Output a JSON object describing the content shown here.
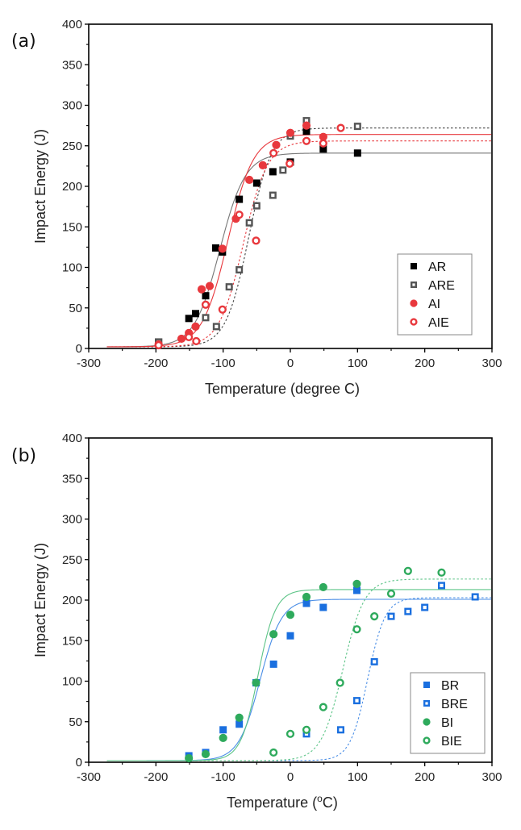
{
  "chart_data": [
    {
      "type": "scatter",
      "panel_label": "(a)",
      "title": "",
      "xlabel": "Temperature (degree C)",
      "ylabel": "Impact Energy (J)",
      "xlim": [
        -300,
        300
      ],
      "ylim": [
        0,
        400
      ],
      "xticks": [
        -300,
        -200,
        -100,
        0,
        100,
        200,
        300
      ],
      "yticks": [
        0,
        50,
        100,
        150,
        200,
        250,
        300,
        350,
        400
      ],
      "grid": false,
      "legend_position": "bottom-right",
      "series": [
        {
          "name": "AR",
          "marker": "square",
          "filled": true,
          "color": "#000000",
          "fit": {
            "style": "solid",
            "color": "#777777",
            "lower": 2,
            "upper": 241,
            "T0": -105,
            "C": 38
          },
          "points": [
            [
              -196,
              8
            ],
            [
              -151,
              37
            ],
            [
              -141,
              43
            ],
            [
              -126,
              65
            ],
            [
              -111,
              124
            ],
            [
              -101,
              119
            ],
            [
              -76,
              184
            ],
            [
              -50,
              204
            ],
            [
              -26,
              218
            ],
            [
              0,
              230
            ],
            [
              24,
              268
            ],
            [
              49,
              246
            ],
            [
              100,
              241
            ]
          ]
        },
        {
          "name": "ARE",
          "marker": "square",
          "filled": false,
          "color": "#555555",
          "fit": {
            "style": "dashed",
            "color": "#444444",
            "lower": 2,
            "upper": 272,
            "T0": -62,
            "C": 34
          },
          "points": [
            [
              -196,
              8
            ],
            [
              -126,
              38
            ],
            [
              -110,
              27
            ],
            [
              -91,
              76
            ],
            [
              -76,
              97
            ],
            [
              -61,
              155
            ],
            [
              -50,
              176
            ],
            [
              -26,
              189
            ],
            [
              -11,
              220
            ],
            [
              0,
              262
            ],
            [
              24,
              281
            ],
            [
              100,
              274
            ]
          ]
        },
        {
          "name": "AI",
          "marker": "circle",
          "filled": true,
          "color": "#e8383d",
          "fit": {
            "style": "solid",
            "color": "#e8383d",
            "lower": 2,
            "upper": 264,
            "T0": -93,
            "C": 38
          },
          "points": [
            [
              -196,
              5
            ],
            [
              -162,
              12
            ],
            [
              -151,
              19
            ],
            [
              -141,
              27
            ],
            [
              -132,
              73
            ],
            [
              -120,
              77
            ],
            [
              -101,
              123
            ],
            [
              -81,
              160
            ],
            [
              -61,
              208
            ],
            [
              -41,
              226
            ],
            [
              -21,
              251
            ],
            [
              0,
              266
            ],
            [
              24,
              275
            ],
            [
              49,
              261
            ]
          ]
        },
        {
          "name": "AIE",
          "marker": "circle",
          "filled": false,
          "color": "#e8383d",
          "fit": {
            "style": "dashed",
            "color": "#e8383d",
            "lower": 2,
            "upper": 256,
            "T0": -70,
            "C": 36
          },
          "points": [
            [
              -196,
              4
            ],
            [
              -151,
              14
            ],
            [
              -140,
              9
            ],
            [
              -126,
              54
            ],
            [
              -101,
              48
            ],
            [
              -76,
              165
            ],
            [
              -51,
              133
            ],
            [
              -25,
              241
            ],
            [
              -1,
              228
            ],
            [
              24,
              256
            ],
            [
              49,
              253
            ],
            [
              75,
              272
            ]
          ]
        }
      ]
    },
    {
      "type": "scatter",
      "panel_label": "(b)",
      "title": "",
      "xlabel": "Temperature (°C)",
      "ylabel": "Impact Energy (J)",
      "xlim": [
        -300,
        300
      ],
      "ylim": [
        0,
        400
      ],
      "xticks": [
        -300,
        -200,
        -100,
        0,
        100,
        200,
        300
      ],
      "yticks": [
        0,
        50,
        100,
        150,
        200,
        250,
        300,
        350,
        400
      ],
      "grid": false,
      "legend_position": "bottom-right",
      "series": [
        {
          "name": "BR",
          "marker": "square",
          "filled": true,
          "color": "#1a6fdf",
          "fit": {
            "style": "solid",
            "color": "#4a8ee6",
            "lower": 2,
            "upper": 201,
            "T0": -45,
            "C": 32
          },
          "points": [
            [
              -151,
              8
            ],
            [
              -126,
              12
            ],
            [
              -100,
              40
            ],
            [
              -76,
              47
            ],
            [
              -51,
              98
            ],
            [
              -25,
              121
            ],
            [
              0,
              156
            ],
            [
              24,
              196
            ],
            [
              49,
              191
            ],
            [
              99,
              212
            ]
          ]
        },
        {
          "name": "BRE",
          "marker": "square",
          "filled": false,
          "color": "#1a6fdf",
          "fit": {
            "style": "dashed",
            "color": "#4a8ee6",
            "lower": 2,
            "upper": 203,
            "T0": 115,
            "C": 26
          },
          "points": [
            [
              24,
              35
            ],
            [
              75,
              40
            ],
            [
              99,
              76
            ],
            [
              125,
              124
            ],
            [
              150,
              180
            ],
            [
              175,
              186
            ],
            [
              200,
              191
            ],
            [
              225,
              218
            ],
            [
              275,
              204
            ]
          ]
        },
        {
          "name": "BI",
          "marker": "circle",
          "filled": true,
          "color": "#2eaa5c",
          "fit": {
            "style": "solid",
            "color": "#5cc487",
            "lower": 2,
            "upper": 213,
            "T0": -48,
            "C": 26
          },
          "points": [
            [
              -151,
              5
            ],
            [
              -126,
              10
            ],
            [
              -100,
              30
            ],
            [
              -76,
              55
            ],
            [
              -51,
              98
            ],
            [
              -25,
              158
            ],
            [
              0,
              182
            ],
            [
              24,
              204
            ],
            [
              49,
              216
            ],
            [
              99,
              220
            ]
          ]
        },
        {
          "name": "BIE",
          "marker": "circle",
          "filled": false,
          "color": "#2eaa5c",
          "fit": {
            "style": "dashed",
            "color": "#5cc487",
            "lower": 2,
            "upper": 226,
            "T0": 78,
            "C": 32
          },
          "points": [
            [
              -25,
              12
            ],
            [
              0,
              35
            ],
            [
              24,
              40
            ],
            [
              49,
              68
            ],
            [
              74,
              98
            ],
            [
              99,
              164
            ],
            [
              125,
              180
            ],
            [
              150,
              208
            ],
            [
              175,
              236
            ],
            [
              225,
              234
            ]
          ]
        }
      ]
    }
  ]
}
